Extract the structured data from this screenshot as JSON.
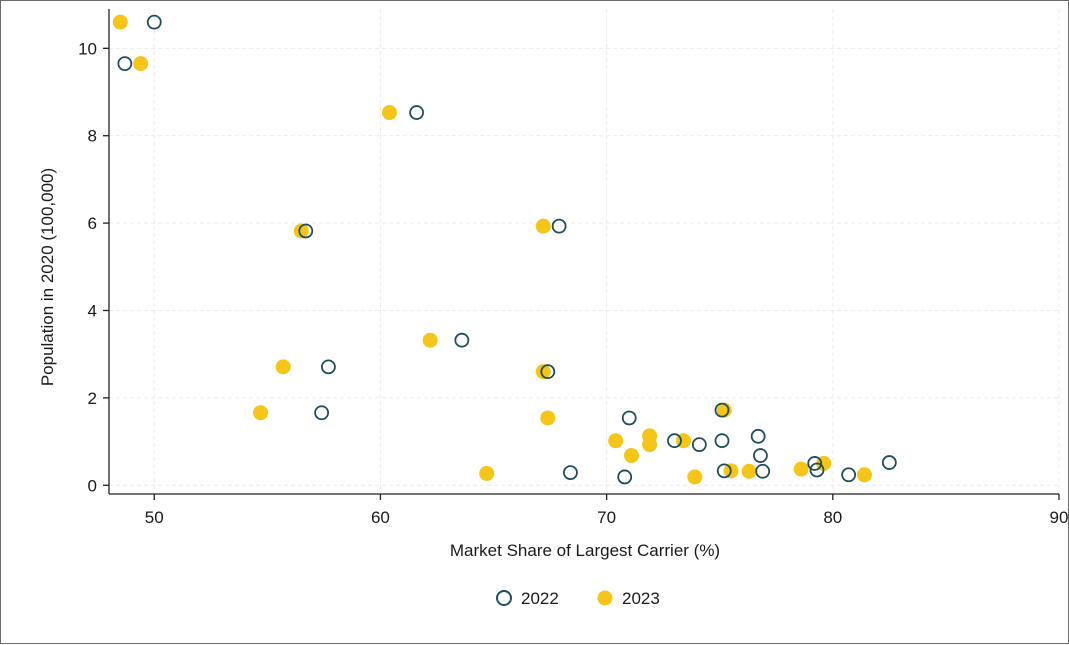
{
  "chart_data": {
    "type": "scatter",
    "title": "",
    "xlabel": "Market Share of Largest Carrier (%)",
    "ylabel": "Population in 2020 (100,000)",
    "xlim": [
      48,
      90
    ],
    "ylim": [
      -0.2,
      10.9
    ],
    "x_ticks": [
      50,
      60,
      70,
      80,
      90
    ],
    "y_ticks": [
      0,
      2,
      4,
      6,
      8,
      10
    ],
    "grid": true,
    "legend_position": "bottom",
    "series": [
      {
        "name": "2022",
        "marker": "hollow-circle",
        "color": "#1f4e5a",
        "points": [
          [
            50.0,
            10.6
          ],
          [
            48.7,
            9.65
          ],
          [
            61.6,
            8.53
          ],
          [
            67.9,
            5.93
          ],
          [
            56.7,
            5.82
          ],
          [
            63.6,
            3.32
          ],
          [
            57.7,
            2.71
          ],
          [
            67.4,
            2.6
          ],
          [
            57.4,
            1.66
          ],
          [
            71.0,
            1.54
          ],
          [
            75.1,
            1.72
          ],
          [
            68.4,
            0.29
          ],
          [
            70.8,
            0.19
          ],
          [
            73.0,
            1.02
          ],
          [
            74.1,
            0.93
          ],
          [
            75.1,
            1.02
          ],
          [
            76.7,
            1.12
          ],
          [
            76.8,
            0.68
          ],
          [
            75.2,
            0.33
          ],
          [
            76.9,
            0.32
          ],
          [
            79.2,
            0.5
          ],
          [
            79.3,
            0.35
          ],
          [
            80.7,
            0.24
          ],
          [
            82.5,
            0.52
          ]
        ]
      },
      {
        "name": "2023",
        "marker": "filled-circle",
        "color": "#f5c518",
        "points": [
          [
            48.5,
            10.6
          ],
          [
            49.4,
            9.65
          ],
          [
            60.4,
            8.53
          ],
          [
            67.2,
            5.93
          ],
          [
            56.5,
            5.82
          ],
          [
            62.2,
            3.32
          ],
          [
            55.7,
            2.71
          ],
          [
            67.2,
            2.6
          ],
          [
            54.7,
            1.66
          ],
          [
            67.4,
            1.54
          ],
          [
            75.2,
            1.72
          ],
          [
            64.7,
            0.27
          ],
          [
            70.4,
            1.02
          ],
          [
            71.9,
            1.13
          ],
          [
            71.9,
            0.93
          ],
          [
            71.1,
            0.68
          ],
          [
            73.4,
            1.02
          ],
          [
            73.9,
            0.19
          ],
          [
            75.5,
            0.33
          ],
          [
            76.3,
            0.32
          ],
          [
            78.6,
            0.37
          ],
          [
            79.6,
            0.5
          ],
          [
            81.4,
            0.24
          ]
        ]
      }
    ]
  }
}
